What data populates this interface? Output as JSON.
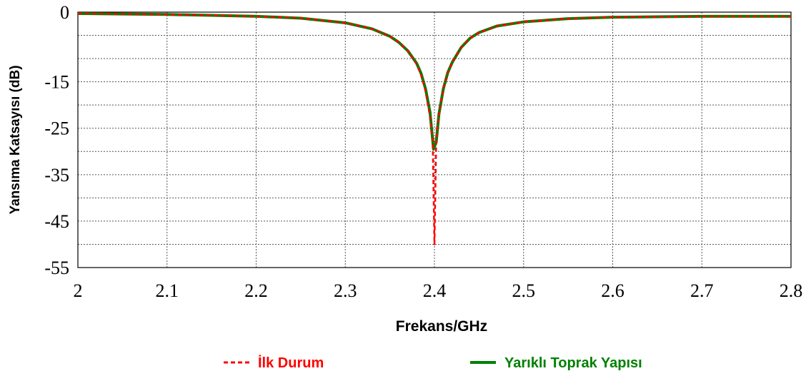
{
  "chart_data": {
    "type": "line",
    "title": "",
    "xlabel": "Frekans/GHz",
    "ylabel": "Yansıma Katsayısı (dB)",
    "xlim": [
      2.0,
      2.8
    ],
    "ylim": [
      -55,
      0
    ],
    "xticks": [
      2.0,
      2.1,
      2.2,
      2.3,
      2.4,
      2.5,
      2.6,
      2.7,
      2.8
    ],
    "xtick_labels": [
      "2",
      "2.1",
      "2.2",
      "2.3",
      "2.4",
      "2.5",
      "2.6",
      "2.7",
      "2.8"
    ],
    "yticks": [
      0,
      -15,
      -25,
      -35,
      -45,
      -55
    ],
    "ytick_labels": [
      "0",
      "-15",
      "-25",
      "-35",
      "-45",
      "-55"
    ],
    "grid": true,
    "legend_position": "bottom",
    "series": [
      {
        "name": "İlk Durum",
        "color": "#ff0000",
        "style": "dashed",
        "x": [
          2.0,
          2.05,
          2.1,
          2.15,
          2.2,
          2.25,
          2.3,
          2.33,
          2.35,
          2.36,
          2.37,
          2.38,
          2.385,
          2.39,
          2.395,
          2.398,
          2.4,
          2.402,
          2.405,
          2.41,
          2.415,
          2.42,
          2.43,
          2.44,
          2.45,
          2.47,
          2.5,
          2.55,
          2.6,
          2.65,
          2.7,
          2.75,
          2.8
        ],
        "y": [
          -0.3,
          -0.4,
          -0.5,
          -0.7,
          -0.9,
          -1.3,
          -2.3,
          -3.6,
          -5.2,
          -6.5,
          -8.3,
          -11.2,
          -13.5,
          -17.0,
          -22.5,
          -27.5,
          -50.0,
          -27.5,
          -22.0,
          -16.5,
          -13.0,
          -10.8,
          -7.6,
          -5.6,
          -4.4,
          -3.0,
          -2.1,
          -1.4,
          -1.1,
          -1.0,
          -0.9,
          -0.9,
          -0.9
        ]
      },
      {
        "name": "Yarıklı Toprak Yapısı",
        "color": "#008000",
        "style": "solid",
        "x": [
          2.0,
          2.05,
          2.1,
          2.15,
          2.2,
          2.25,
          2.3,
          2.33,
          2.35,
          2.36,
          2.37,
          2.38,
          2.385,
          2.39,
          2.395,
          2.399,
          2.402,
          2.405,
          2.41,
          2.415,
          2.42,
          2.43,
          2.44,
          2.45,
          2.47,
          2.5,
          2.55,
          2.6,
          2.65,
          2.7,
          2.75,
          2.8
        ],
        "y": [
          -0.3,
          -0.4,
          -0.5,
          -0.7,
          -0.9,
          -1.3,
          -2.3,
          -3.6,
          -5.2,
          -6.5,
          -8.3,
          -11.0,
          -13.2,
          -16.5,
          -21.5,
          -29.5,
          -28.0,
          -22.0,
          -16.5,
          -13.0,
          -10.8,
          -7.6,
          -5.6,
          -4.4,
          -3.0,
          -2.1,
          -1.4,
          -1.1,
          -1.0,
          -0.9,
          -0.9,
          -0.9
        ]
      }
    ]
  }
}
